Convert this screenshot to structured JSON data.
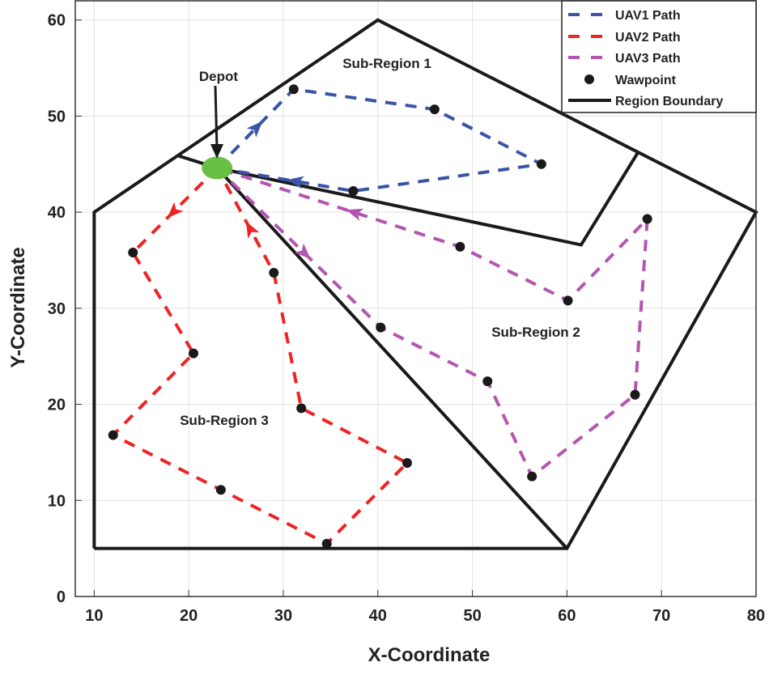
{
  "chart_data": {
    "type": "line",
    "title": "",
    "xlabel": "X-Coordinate",
    "ylabel": "Y-Coordinate",
    "xlim": [
      8,
      80
    ],
    "ylim": [
      0,
      62
    ],
    "xticks": [
      "10",
      "20",
      "30",
      "40",
      "50",
      "60",
      "70",
      "80"
    ],
    "yticks": [
      "0",
      "10",
      "20",
      "30",
      "40",
      "50",
      "60"
    ],
    "grid": true,
    "legend_position": "top-right",
    "depot": {
      "label": "Depot",
      "x": 23,
      "y": 44.6,
      "color": "#6abf45"
    },
    "region_boundary": {
      "name": "Region Boundary",
      "color": "#1a1a1a",
      "outer": [
        [
          10,
          5
        ],
        [
          10,
          40
        ],
        [
          40,
          60
        ],
        [
          80,
          40
        ],
        [
          60,
          5
        ],
        [
          10,
          5
        ]
      ],
      "dividers": [
        [
          [
            18.8,
            45.9
          ],
          [
            23,
            44.6
          ],
          [
            61.5,
            36.6
          ],
          [
            67.5,
            46.2
          ]
        ],
        [
          [
            23,
            44.6
          ],
          [
            60,
            5
          ]
        ]
      ]
    },
    "series": [
      {
        "name": "UAV1 Path",
        "color": "#3a55a8",
        "points": [
          [
            23,
            44.6
          ],
          [
            31.1,
            52.8
          ],
          [
            46.0,
            50.7
          ],
          [
            57.3,
            45.0
          ],
          [
            37.4,
            42.2
          ],
          [
            23,
            44.6
          ]
        ]
      },
      {
        "name": "UAV2 Path",
        "color": "#ee2424",
        "points": [
          [
            23,
            44.6
          ],
          [
            14.1,
            35.8
          ],
          [
            20.5,
            25.3
          ],
          [
            12.0,
            16.8
          ],
          [
            23.4,
            11.1
          ],
          [
            34.6,
            5.5
          ],
          [
            43.1,
            13.9
          ],
          [
            31.9,
            19.6
          ],
          [
            29.0,
            33.7
          ],
          [
            23,
            44.6
          ]
        ]
      },
      {
        "name": "UAV3 Path",
        "color": "#b455b0",
        "points": [
          [
            23,
            44.6
          ],
          [
            40.3,
            28.0
          ],
          [
            51.6,
            22.4
          ],
          [
            56.3,
            12.5
          ],
          [
            67.2,
            21.0
          ],
          [
            68.5,
            39.3
          ],
          [
            60.1,
            30.8
          ],
          [
            48.7,
            36.4
          ],
          [
            23,
            44.6
          ]
        ]
      }
    ],
    "waypoint_label": "Wawpoint",
    "annotations": [
      "Sub-Region 1",
      "Sub-Region 2",
      "Sub-Region 3"
    ]
  }
}
